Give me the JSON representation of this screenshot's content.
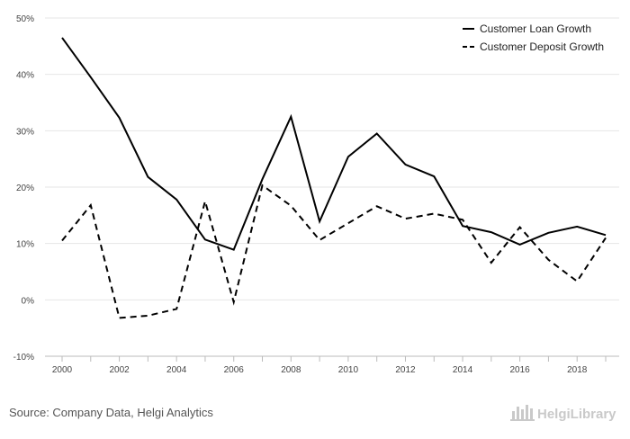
{
  "chart_data": {
    "type": "line",
    "title": "",
    "xlabel": "",
    "ylabel": "",
    "x": [
      2000,
      2001,
      2002,
      2003,
      2004,
      2005,
      2006,
      2007,
      2008,
      2009,
      2010,
      2011,
      2012,
      2013,
      2014,
      2015,
      2016,
      2017,
      2018,
      2019
    ],
    "xticks": [
      "2000",
      "2002",
      "2004",
      "2006",
      "2008",
      "2010",
      "2012",
      "2014",
      "2016",
      "2018"
    ],
    "ylim": [
      -10,
      50
    ],
    "yticks": [
      "-10%",
      "0%",
      "10%",
      "20%",
      "30%",
      "40%",
      "50%"
    ],
    "grid": true,
    "legend_position": "top-right",
    "series": [
      {
        "name": "Customer Loan Growth",
        "style": "solid",
        "color": "#000000",
        "values": [
          46.5,
          39.5,
          32.3,
          21.8,
          17.8,
          10.7,
          8.9,
          21.4,
          32.5,
          13.9,
          25.4,
          29.5,
          24.0,
          21.9,
          13.1,
          12.0,
          9.8,
          11.9,
          13.0,
          11.5
        ]
      },
      {
        "name": "Customer Deposit Growth",
        "style": "dashed",
        "color": "#000000",
        "values": [
          10.5,
          16.8,
          -3.2,
          -2.8,
          -1.6,
          17.5,
          -0.4,
          20.3,
          16.7,
          10.6,
          13.6,
          16.6,
          14.4,
          15.3,
          14.2,
          6.6,
          12.9,
          7.1,
          3.3,
          11.0
        ]
      }
    ]
  },
  "footer": {
    "source": "Source: Company Data, Helgi Analytics",
    "logo_text": "HelgiLibrary"
  },
  "colors": {
    "grid": "#e6e6e6",
    "axis": "#bbbbbb",
    "text": "#444444",
    "logo": "#c9c9c9"
  }
}
